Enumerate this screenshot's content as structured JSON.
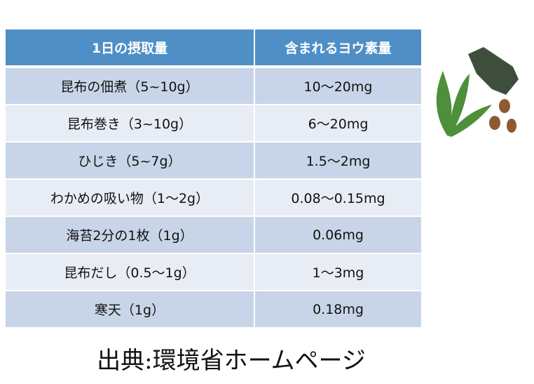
{
  "table": {
    "headers": [
      "1日の摂取量",
      "含まれるヨウ素量"
    ],
    "rows": [
      [
        "昆布の佃煮（5~10g）",
        "10～20mg"
      ],
      [
        "昆布巻き（3~10g）",
        "6～20mg"
      ],
      [
        "ひじき（5~7g）",
        "1.5～2mg"
      ],
      [
        "わかめの吸い物（1～2g）",
        "0.08～0.15mg"
      ],
      [
        "海苔2分の1枚（1g）",
        "0.06mg"
      ],
      [
        "昆布だし（0.5～1g）",
        "1～3mg"
      ],
      [
        "寒天（1g）",
        "0.18mg"
      ]
    ]
  },
  "caption": "出典:環境省ホームページ",
  "colors": {
    "header": "#4f8fc6",
    "row_dark": "#c8d5e8",
    "row_light": "#e8edf5"
  },
  "illustration": "seaweed-illustration"
}
